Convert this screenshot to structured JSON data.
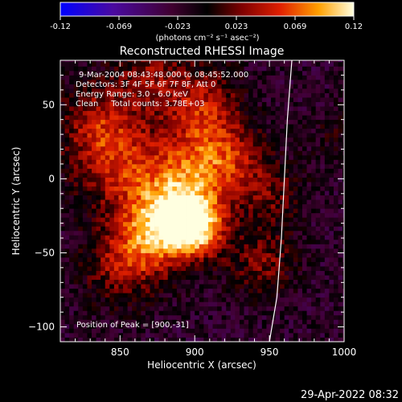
{
  "colorbar": {
    "ticks": [
      "-0.12",
      "-0.069",
      "-0.023",
      "0.023",
      "0.069",
      "0.12"
    ],
    "units": "(photons cm⁻² s⁻¹ asec⁻²)",
    "range": [
      -0.12,
      0.12
    ]
  },
  "chart_data": {
    "type": "heatmap",
    "title": "Reconstructed RHESSI Image",
    "xlabel": "Heliocentric X (arcsec)",
    "ylabel": "Heliocentric Y (arcsec)",
    "xlim": [
      810,
      1000
    ],
    "ylim": [
      -110,
      80
    ],
    "x_ticks": [
      "850",
      "900",
      "950",
      "1000"
    ],
    "y_ticks": [
      "50",
      "0",
      "−50",
      "−100"
    ],
    "annotations": [
      "9-Mar-2004 08:43:48.000 to 08:45:52.000",
      "Detectors: 3F 4F 5F 6F 7F 8F, Att 0",
      "Energy Range: 3.0 - 6.0 keV",
      "Clean     Total counts: 3.78E+03"
    ],
    "peak_label": "Position of Peak = [900,-31]",
    "peak": [
      900,
      -31
    ],
    "emission_sources": [
      {
        "x": 900,
        "y": -31,
        "amp": 1.0,
        "sigma": 14
      },
      {
        "x": 885,
        "y": -20,
        "amp": 0.7,
        "sigma": 20
      },
      {
        "x": 870,
        "y": -40,
        "amp": 0.55,
        "sigma": 18
      },
      {
        "x": 850,
        "y": 10,
        "amp": 0.55,
        "sigma": 22
      },
      {
        "x": 835,
        "y": 40,
        "amp": 0.45,
        "sigma": 18
      },
      {
        "x": 905,
        "y": 50,
        "amp": 0.55,
        "sigma": 18
      },
      {
        "x": 900,
        "y": 10,
        "amp": 0.5,
        "sigma": 18
      },
      {
        "x": 925,
        "y": 15,
        "amp": 0.45,
        "sigma": 16
      },
      {
        "x": 850,
        "y": -60,
        "amp": 0.4,
        "sigma": 18
      },
      {
        "x": 945,
        "y": -55,
        "amp": 0.4,
        "sigma": 16
      },
      {
        "x": 870,
        "y": 70,
        "amp": 0.4,
        "sigma": 16
      },
      {
        "x": 950,
        "y": -10,
        "amp": 0.35,
        "sigma": 15
      },
      {
        "x": 995,
        "y": 30,
        "amp": 0.15,
        "sigma": 14
      }
    ],
    "limb_curve": [
      [
        965,
        80
      ],
      [
        962,
        40
      ],
      [
        960,
        0
      ],
      [
        958,
        -40
      ],
      [
        955,
        -80
      ],
      [
        950,
        -110
      ]
    ]
  },
  "footer": {
    "timestamp": "29-Apr-2022 08:32"
  }
}
